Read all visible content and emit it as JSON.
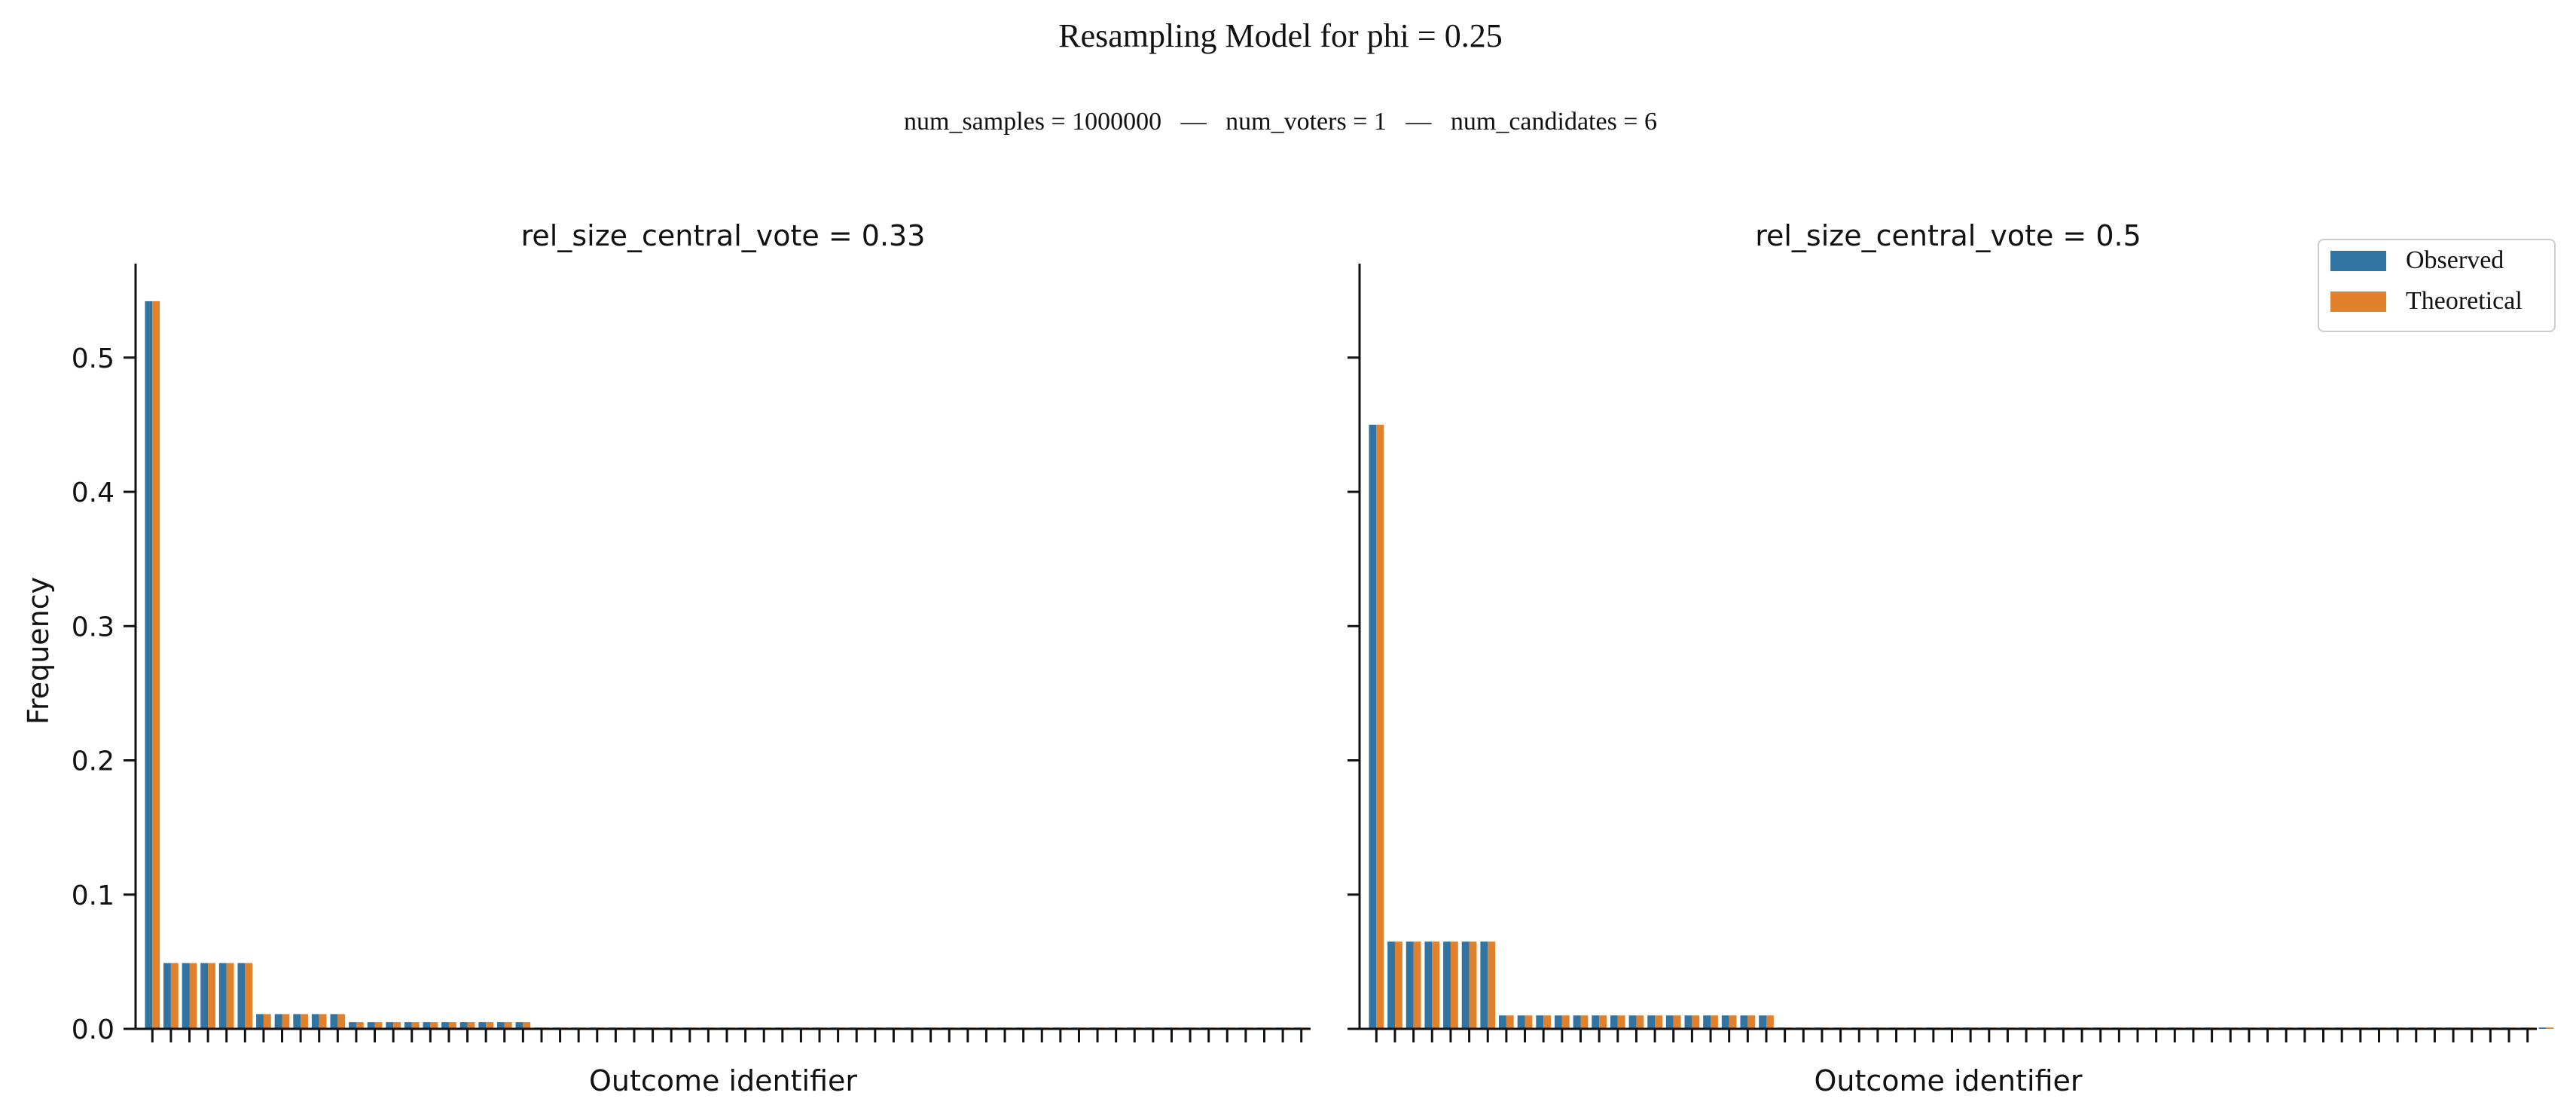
{
  "title": "Resampling Model for phi = 0.25",
  "subtitle": "num_samples = 1000000   —   num_voters = 1   —   num_candidates = 6",
  "legend": {
    "placement": "top-right",
    "items": [
      {
        "label": "Observed",
        "color": "#3274a1"
      },
      {
        "label": "Theoretical",
        "color": "#e1812c"
      }
    ]
  },
  "shared_ylabel": "Frequency",
  "chart_data": [
    {
      "type": "bar",
      "title": "rel_size_central_vote = 0.33",
      "xlabel": "Outcome identifier",
      "ylabel": "Frequency",
      "ylim": [
        0,
        0.57
      ],
      "yticks": [
        0.0,
        0.1,
        0.2,
        0.3,
        0.4,
        0.5
      ],
      "ytick_labels": [
        "0.0",
        "0.1",
        "0.2",
        "0.3",
        "0.4",
        "0.5"
      ],
      "num_outcomes": 63,
      "tick_labels_visible": false,
      "grid": false,
      "series": [
        {
          "name": "Observed",
          "values": [
            0.542,
            0.049,
            0.049,
            0.049,
            0.049,
            0.049,
            0.011,
            0.011,
            0.011,
            0.011,
            0.011,
            0.005,
            0.005,
            0.005,
            0.005,
            0.005,
            0.005,
            0.005,
            0.005,
            0.005,
            0.005,
            0.001,
            0.001,
            0.001,
            0.001,
            0.001,
            0.001,
            0.001,
            0.001,
            0.001,
            0.001,
            0.001,
            0.001,
            0.001,
            0.001,
            0.001,
            0.001,
            0.001,
            0.001,
            0.001,
            0.001,
            0.001,
            0.001,
            0.001,
            0.001,
            0.001,
            0.001,
            0.001,
            0.001,
            0.001,
            0.001,
            0.001,
            0.001,
            0.001,
            0.001,
            0.001,
            0.001,
            0.001,
            0.001,
            0.001,
            0.001,
            0.001,
            0.001
          ]
        },
        {
          "name": "Theoretical",
          "values": [
            0.542,
            0.049,
            0.049,
            0.049,
            0.049,
            0.049,
            0.011,
            0.011,
            0.011,
            0.011,
            0.011,
            0.005,
            0.005,
            0.005,
            0.005,
            0.005,
            0.005,
            0.005,
            0.005,
            0.005,
            0.005,
            0.001,
            0.001,
            0.001,
            0.001,
            0.001,
            0.001,
            0.001,
            0.001,
            0.001,
            0.001,
            0.001,
            0.001,
            0.001,
            0.001,
            0.001,
            0.001,
            0.001,
            0.001,
            0.001,
            0.001,
            0.001,
            0.001,
            0.001,
            0.001,
            0.001,
            0.001,
            0.001,
            0.001,
            0.001,
            0.001,
            0.001,
            0.001,
            0.001,
            0.001,
            0.001,
            0.001,
            0.001,
            0.001,
            0.001,
            0.001,
            0.001,
            0.001
          ]
        }
      ]
    },
    {
      "type": "bar",
      "title": "rel_size_central_vote = 0.5",
      "xlabel": "Outcome identifier",
      "ylim": [
        0,
        0.57
      ],
      "yticks": [
        0.0,
        0.1,
        0.2,
        0.3,
        0.4,
        0.5
      ],
      "ytick_labels": [],
      "num_outcomes": 63,
      "tick_labels_visible": false,
      "grid": false,
      "series": [
        {
          "name": "Observed",
          "values": [
            0.45,
            0.065,
            0.065,
            0.065,
            0.065,
            0.065,
            0.065,
            0.01,
            0.01,
            0.01,
            0.01,
            0.01,
            0.01,
            0.01,
            0.01,
            0.01,
            0.01,
            0.01,
            0.01,
            0.01,
            0.01,
            0.01,
            0.001,
            0.001,
            0.001,
            0.001,
            0.001,
            0.001,
            0.001,
            0.001,
            0.001,
            0.001,
            0.001,
            0.001,
            0.001,
            0.001,
            0.001,
            0.001,
            0.001,
            0.001,
            0.001,
            0.001,
            0.001,
            0.001,
            0.001,
            0.001,
            0.001,
            0.001,
            0.001,
            0.001,
            0.001,
            0.001,
            0.001,
            0.001,
            0.001,
            0.001,
            0.001,
            0.001,
            0.001,
            0.001,
            0.001,
            0.001,
            0.001,
            0.001
          ]
        },
        {
          "name": "Theoretical",
          "values": [
            0.45,
            0.065,
            0.065,
            0.065,
            0.065,
            0.065,
            0.065,
            0.01,
            0.01,
            0.01,
            0.01,
            0.01,
            0.01,
            0.01,
            0.01,
            0.01,
            0.01,
            0.01,
            0.01,
            0.01,
            0.01,
            0.01,
            0.001,
            0.001,
            0.001,
            0.001,
            0.001,
            0.001,
            0.001,
            0.001,
            0.001,
            0.001,
            0.001,
            0.001,
            0.001,
            0.001,
            0.001,
            0.001,
            0.001,
            0.001,
            0.001,
            0.001,
            0.001,
            0.001,
            0.001,
            0.001,
            0.001,
            0.001,
            0.001,
            0.001,
            0.001,
            0.001,
            0.001,
            0.001,
            0.001,
            0.001,
            0.001,
            0.001,
            0.001,
            0.001,
            0.001,
            0.001,
            0.001,
            0.001
          ]
        }
      ]
    }
  ]
}
